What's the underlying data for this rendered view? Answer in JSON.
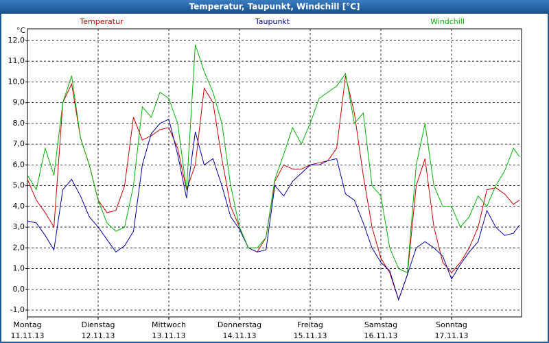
{
  "chart_data": {
    "type": "line",
    "title": "Temperatur, Taupunkt, Windchill [°C]",
    "y_unit": "°C",
    "x": [
      0,
      0.125,
      0.25,
      0.375,
      0.5,
      0.625,
      0.75,
      0.875,
      1,
      1.125,
      1.25,
      1.375,
      1.5,
      1.625,
      1.75,
      1.875,
      2,
      2.125,
      2.25,
      2.375,
      2.5,
      2.625,
      2.75,
      2.875,
      3,
      3.125,
      3.25,
      3.375,
      3.5,
      3.625,
      3.75,
      3.875,
      4,
      4.125,
      4.25,
      4.375,
      4.5,
      4.625,
      4.75,
      4.875,
      5,
      5.125,
      5.25,
      5.375,
      5.5,
      5.625,
      5.75,
      5.875,
      6,
      6.125,
      6.25,
      6.375,
      6.5,
      6.625,
      6.75,
      6.875,
      6.96
    ],
    "xlim": [
      0,
      6.99
    ],
    "xticks": [
      {
        "value": 0,
        "label": "Montag"
      },
      {
        "value": 1,
        "label": "Dienstag"
      },
      {
        "value": 2,
        "label": "Mittwoch"
      },
      {
        "value": 3,
        "label": "Donnerstag"
      },
      {
        "value": 4,
        "label": "Freitag"
      },
      {
        "value": 5,
        "label": "Samstag"
      },
      {
        "value": 6,
        "label": "Sonntag"
      }
    ],
    "xtick_dates": [
      "11.11.13",
      "12.11.13",
      "13.11.13",
      "14.11.13",
      "15.11.13",
      "16.11.13",
      "17.11.13"
    ],
    "ylim": [
      -1.33,
      12.56
    ],
    "yticks": [
      {
        "value": -1,
        "label": "-1,0"
      },
      {
        "value": 0,
        "label": "0,0"
      },
      {
        "value": 1,
        "label": "1,0"
      },
      {
        "value": 2,
        "label": "2,0"
      },
      {
        "value": 3,
        "label": "3,0"
      },
      {
        "value": 4,
        "label": "4,0"
      },
      {
        "value": 5,
        "label": "5,0"
      },
      {
        "value": 6,
        "label": "6,0"
      },
      {
        "value": 7,
        "label": "7,0"
      },
      {
        "value": 8,
        "label": "8,0"
      },
      {
        "value": 9,
        "label": "9,0"
      },
      {
        "value": 10,
        "label": "10,0"
      },
      {
        "value": 11,
        "label": "11,0"
      },
      {
        "value": 12,
        "label": "12,0"
      }
    ],
    "grid": true,
    "series": [
      {
        "name": "Temperatur",
        "color": "#cc0000",
        "values": [
          5.3,
          4.3,
          3.7,
          3.0,
          9.0,
          9.9,
          7.3,
          6.0,
          4.3,
          3.7,
          3.8,
          5.0,
          8.3,
          7.2,
          7.4,
          7.7,
          7.8,
          6.8,
          4.8,
          6.0,
          9.7,
          9.0,
          6.3,
          4.0,
          3.0,
          2.0,
          1.8,
          2.5,
          5.2,
          6.0,
          5.8,
          5.8,
          6.0,
          6.1,
          6.2,
          6.8,
          10.3,
          8.5,
          5.5,
          3.0,
          1.5,
          0.8,
          -0.5,
          0.7,
          5.0,
          6.3,
          3.0,
          1.3,
          0.8,
          1.3,
          2.0,
          3.0,
          4.8,
          4.9,
          4.6,
          4.1,
          4.3
        ]
      },
      {
        "name": "Taupunkt",
        "color": "#0000aa",
        "values": [
          3.3,
          3.2,
          2.6,
          1.9,
          4.8,
          5.3,
          4.5,
          3.5,
          3.0,
          2.4,
          1.8,
          2.1,
          2.8,
          6.0,
          7.5,
          8.0,
          8.2,
          6.5,
          4.4,
          7.6,
          6.0,
          6.3,
          5.0,
          3.5,
          2.9,
          2.0,
          1.8,
          1.9,
          5.0,
          4.5,
          5.2,
          5.6,
          6.0,
          6.0,
          6.2,
          6.3,
          4.6,
          4.3,
          3.2,
          2.0,
          1.3,
          0.9,
          -0.5,
          0.7,
          2.0,
          2.3,
          2.0,
          1.6,
          0.5,
          1.2,
          1.8,
          2.3,
          3.8,
          3.0,
          2.6,
          2.7,
          3.1
        ]
      },
      {
        "name": "Windchill",
        "color": "#00b400",
        "values": [
          5.5,
          4.8,
          6.8,
          5.5,
          9.0,
          10.3,
          7.3,
          6.0,
          4.3,
          3.2,
          2.8,
          3.0,
          5.0,
          8.8,
          8.3,
          9.5,
          9.2,
          8.0,
          4.8,
          11.8,
          10.5,
          9.5,
          8.0,
          5.0,
          3.0,
          2.0,
          2.0,
          2.5,
          5.3,
          6.5,
          7.8,
          7.0,
          8.0,
          9.2,
          9.5,
          9.8,
          10.4,
          8.0,
          8.5,
          5.0,
          4.5,
          2.0,
          1.0,
          0.8,
          6.0,
          8.0,
          5.0,
          4.0,
          4.0,
          3.0,
          3.5,
          4.5,
          4.0,
          5.0,
          5.7,
          6.8,
          6.4
        ]
      }
    ]
  }
}
